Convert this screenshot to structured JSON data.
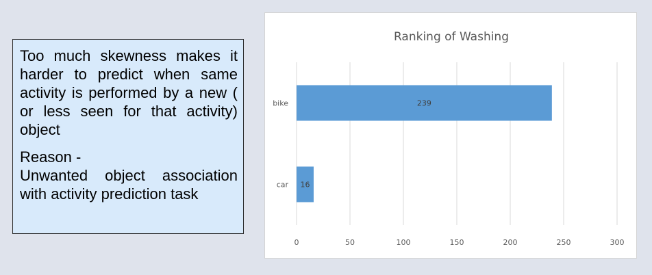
{
  "textbox": {
    "paragraph1": "Too much skewness makes it harder to predict when same activity is performed by a new ( or less seen for that activity) object",
    "reason_title": "Reason -",
    "reason_text": "Unwanted object association with activity prediction task"
  },
  "chart_data": {
    "type": "bar",
    "orientation": "horizontal",
    "title": "Ranking of Washing",
    "categories": [
      "bike",
      "car"
    ],
    "values": [
      239,
      16
    ],
    "data_labels": [
      "239",
      "16"
    ],
    "xlim": [
      0,
      300
    ],
    "x_ticks": [
      "0",
      "50",
      "100",
      "150",
      "200",
      "250",
      "300"
    ],
    "grid": "vertical",
    "bar_color": "#5b9bd5",
    "gridline_color": "#d9d9d9"
  }
}
